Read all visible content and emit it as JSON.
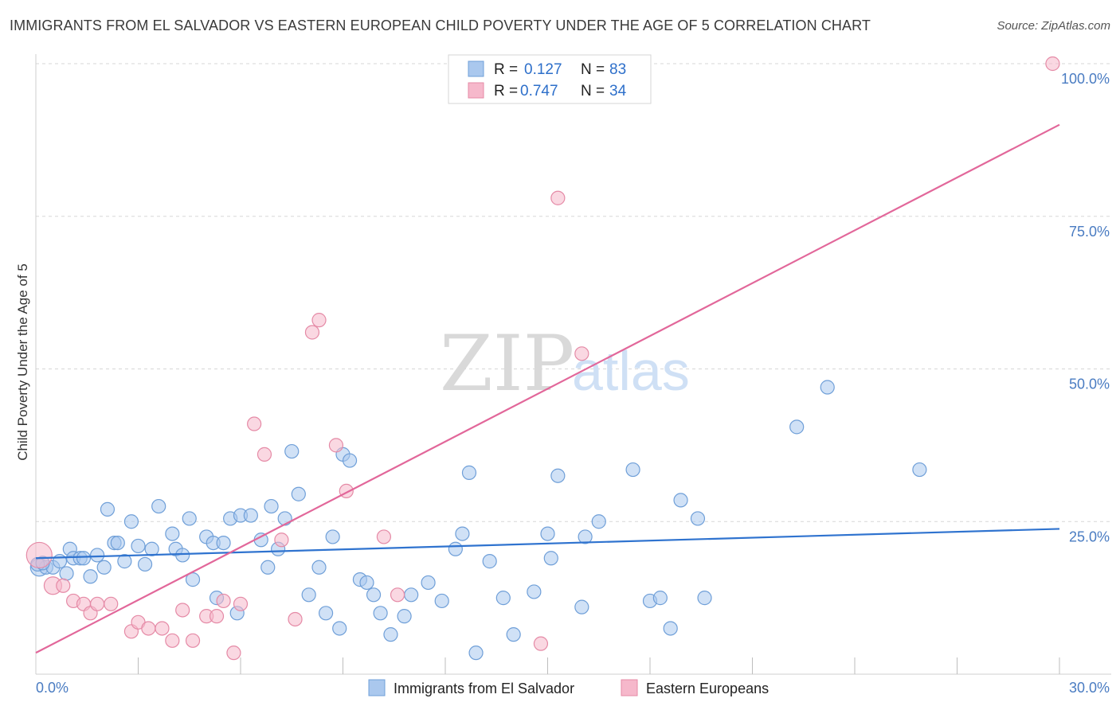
{
  "title": "IMMIGRANTS FROM EL SALVADOR VS EASTERN EUROPEAN CHILD POVERTY UNDER THE AGE OF 5 CORRELATION CHART",
  "source": "Source: ZipAtlas.com",
  "watermark": {
    "zip": "ZIP",
    "atlas": "atlas"
  },
  "colors": {
    "blue_fill": "#aac8ee",
    "blue_stroke": "#6f9fd8",
    "blue_line": "#2f73cf",
    "pink_fill": "#f6b8cb",
    "pink_stroke": "#e58aa6",
    "pink_line": "#e2679a",
    "grid": "#d7d7d7",
    "axis_text": "#4a7cc2"
  },
  "legend": {
    "rows": [
      {
        "r_label": "R =",
        "r_value": "0.127",
        "n_label": "N =",
        "n_value": "83"
      },
      {
        "r_label": "R =",
        "r_value": "0.747",
        "n_label": "N =",
        "n_value": "34"
      }
    ]
  },
  "chart_data": {
    "type": "scatter",
    "title": "IMMIGRANTS FROM EL SALVADOR VS EASTERN EUROPEAN CHILD POVERTY UNDER THE AGE OF 5 CORRELATION CHART",
    "xlabel": "",
    "ylabel": "Child Poverty Under the Age of 5",
    "xlim": [
      0,
      30
    ],
    "ylim": [
      0,
      100
    ],
    "x_tick_labels": [
      "0.0%",
      "30.0%"
    ],
    "y_ticks": [
      25,
      50,
      75,
      100
    ],
    "y_tick_labels": [
      "25.0%",
      "50.0%",
      "75.0%",
      "100.0%"
    ],
    "grid": true,
    "legend_position": "bottom",
    "series": [
      {
        "name": "Immigrants from El Salvador",
        "trend": {
          "x": [
            0,
            30
          ],
          "y": [
            19.0,
            23.8
          ]
        },
        "points": [
          [
            0.1,
            17.5
          ],
          [
            0.3,
            17.5
          ],
          [
            0.5,
            17.5
          ],
          [
            0.7,
            18.5
          ],
          [
            0.9,
            16.5
          ],
          [
            1.0,
            20.5
          ],
          [
            1.1,
            19.0
          ],
          [
            1.3,
            19.0
          ],
          [
            1.4,
            19.0
          ],
          [
            1.6,
            16.0
          ],
          [
            1.8,
            19.5
          ],
          [
            2.0,
            17.5
          ],
          [
            2.1,
            27.0
          ],
          [
            2.3,
            21.5
          ],
          [
            2.4,
            21.5
          ],
          [
            2.6,
            18.5
          ],
          [
            2.8,
            25.0
          ],
          [
            3.0,
            21.0
          ],
          [
            3.2,
            18.0
          ],
          [
            3.4,
            20.5
          ],
          [
            3.6,
            27.5
          ],
          [
            4.0,
            23.0
          ],
          [
            4.1,
            20.5
          ],
          [
            4.3,
            19.5
          ],
          [
            4.5,
            25.5
          ],
          [
            4.6,
            15.5
          ],
          [
            5.0,
            22.5
          ],
          [
            5.2,
            21.5
          ],
          [
            5.3,
            12.5
          ],
          [
            5.5,
            21.5
          ],
          [
            5.7,
            25.5
          ],
          [
            5.9,
            10.0
          ],
          [
            6.0,
            26.0
          ],
          [
            6.3,
            26.0
          ],
          [
            6.6,
            22.0
          ],
          [
            6.8,
            17.5
          ],
          [
            6.9,
            27.5
          ],
          [
            7.1,
            20.5
          ],
          [
            7.3,
            25.5
          ],
          [
            7.5,
            36.5
          ],
          [
            7.7,
            29.5
          ],
          [
            8.0,
            13.0
          ],
          [
            8.3,
            17.5
          ],
          [
            8.5,
            10.0
          ],
          [
            8.7,
            22.5
          ],
          [
            8.9,
            7.5
          ],
          [
            9.0,
            36.0
          ],
          [
            9.2,
            35.0
          ],
          [
            9.5,
            15.5
          ],
          [
            9.7,
            15.0
          ],
          [
            9.9,
            13.0
          ],
          [
            10.1,
            10.0
          ],
          [
            10.4,
            6.5
          ],
          [
            10.8,
            9.5
          ],
          [
            11.0,
            13.0
          ],
          [
            11.5,
            15.0
          ],
          [
            11.9,
            12.0
          ],
          [
            12.3,
            20.5
          ],
          [
            12.5,
            23.0
          ],
          [
            12.7,
            33.0
          ],
          [
            12.9,
            3.5
          ],
          [
            13.3,
            18.5
          ],
          [
            13.7,
            12.5
          ],
          [
            14.0,
            6.5
          ],
          [
            14.6,
            13.5
          ],
          [
            15.0,
            23.0
          ],
          [
            15.1,
            19.0
          ],
          [
            15.3,
            32.5
          ],
          [
            16.0,
            11.0
          ],
          [
            16.1,
            22.5
          ],
          [
            16.5,
            25.0
          ],
          [
            17.5,
            33.5
          ],
          [
            18.0,
            12.0
          ],
          [
            18.3,
            12.5
          ],
          [
            18.6,
            7.5
          ],
          [
            18.9,
            28.5
          ],
          [
            19.4,
            25.5
          ],
          [
            19.6,
            12.5
          ],
          [
            22.3,
            40.5
          ],
          [
            23.2,
            47.0
          ],
          [
            25.9,
            33.5
          ],
          [
            0.05,
            18.0
          ],
          [
            0.2,
            18.2
          ]
        ]
      },
      {
        "name": "Eastern Europeans",
        "trend": {
          "x": [
            0,
            30
          ],
          "y": [
            3.5,
            90.0
          ]
        },
        "points": [
          [
            0.1,
            19.5
          ],
          [
            0.5,
            14.5
          ],
          [
            0.8,
            14.5
          ],
          [
            1.1,
            12.0
          ],
          [
            1.4,
            11.5
          ],
          [
            1.6,
            10.0
          ],
          [
            1.8,
            11.5
          ],
          [
            2.2,
            11.5
          ],
          [
            2.8,
            7.0
          ],
          [
            3.0,
            8.5
          ],
          [
            3.3,
            7.5
          ],
          [
            3.7,
            7.5
          ],
          [
            4.0,
            5.5
          ],
          [
            4.3,
            10.5
          ],
          [
            4.6,
            5.5
          ],
          [
            5.0,
            9.5
          ],
          [
            5.3,
            9.5
          ],
          [
            5.5,
            12.0
          ],
          [
            5.8,
            3.5
          ],
          [
            6.0,
            11.5
          ],
          [
            6.4,
            41.0
          ],
          [
            6.7,
            36.0
          ],
          [
            7.2,
            22.0
          ],
          [
            7.6,
            9.0
          ],
          [
            8.1,
            56.0
          ],
          [
            8.3,
            58.0
          ],
          [
            8.8,
            37.5
          ],
          [
            9.1,
            30.0
          ],
          [
            10.2,
            22.5
          ],
          [
            10.6,
            13.0
          ],
          [
            14.8,
            5.0
          ],
          [
            15.3,
            78.0
          ],
          [
            16.0,
            52.5
          ],
          [
            29.8,
            100.0
          ]
        ]
      }
    ]
  },
  "bottom_legend": {
    "series1": "Immigrants from El Salvador",
    "series2": "Eastern Europeans"
  }
}
